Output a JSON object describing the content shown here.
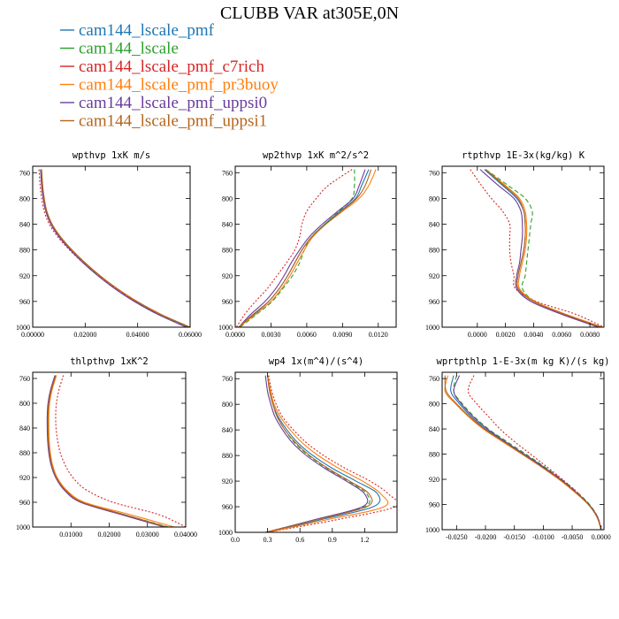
{
  "figure": {
    "title": "CLUBB VAR at305E,0N"
  },
  "series": [
    {
      "name": "cam144_lscale_pmf",
      "color": "#1f77b4",
      "dash": "solid"
    },
    {
      "name": "cam144_lscale",
      "color": "#2ca02c",
      "dash": "dashed"
    },
    {
      "name": "cam144_lscale_pmf_c7rich",
      "color": "#d62728",
      "dash": "dotted"
    },
    {
      "name": "cam144_lscale_pmf_pr3buoy",
      "color": "#ff7f0e",
      "dash": "solid"
    },
    {
      "name": "cam144_lscale_pmf_uppsi0",
      "color": "#6a3d9a",
      "dash": "solid"
    },
    {
      "name": "cam144_lscale_pmf_uppsi1",
      "color": "#b5651d",
      "dash": "solid"
    }
  ],
  "chart_data": [
    {
      "type": "line",
      "title": "wpthvp  1xK m/s",
      "ylim": [
        1000,
        750
      ],
      "yticks": [
        760,
        800,
        840,
        880,
        920,
        960,
        1000
      ],
      "xlim": [
        0,
        0.06
      ],
      "xticks": [
        0,
        0.02,
        0.04,
        0.06
      ],
      "xticklabels": [
        "0.00000",
        "0.02000",
        "0.04000",
        "0.06000"
      ],
      "levels": [
        755,
        780,
        800,
        820,
        840,
        860,
        880,
        900,
        920,
        940,
        960,
        980,
        1000
      ],
      "series_x": [
        [
          0.0032,
          0.0036,
          0.0042,
          0.0052,
          0.0072,
          0.0105,
          0.0148,
          0.0198,
          0.0255,
          0.032,
          0.0395,
          0.0485,
          0.0595
        ],
        [
          0.003,
          0.0034,
          0.004,
          0.005,
          0.007,
          0.0103,
          0.0146,
          0.0196,
          0.0253,
          0.0318,
          0.0393,
          0.0482,
          0.0592
        ],
        [
          0.0024,
          0.0028,
          0.0034,
          0.0044,
          0.0063,
          0.0096,
          0.014,
          0.0192,
          0.025,
          0.0316,
          0.0392,
          0.0484,
          0.0598
        ],
        [
          0.0033,
          0.0037,
          0.0043,
          0.0053,
          0.0073,
          0.0106,
          0.0149,
          0.0199,
          0.0256,
          0.0321,
          0.0397,
          0.0488,
          0.06
        ],
        [
          0.003,
          0.0034,
          0.004,
          0.005,
          0.0069,
          0.0101,
          0.0143,
          0.0192,
          0.0248,
          0.0312,
          0.0387,
          0.0476,
          0.0585
        ],
        [
          0.0034,
          0.0038,
          0.0044,
          0.0054,
          0.0074,
          0.0107,
          0.015,
          0.02,
          0.0257,
          0.0322,
          0.0398,
          0.0489,
          0.06
        ]
      ]
    },
    {
      "type": "line",
      "title": "wp2thvp  1xK m^2/s^2",
      "ylim": [
        1000,
        750
      ],
      "yticks": [
        760,
        800,
        840,
        880,
        920,
        960,
        1000
      ],
      "xlim": [
        0,
        0.0135
      ],
      "xticks": [
        0,
        0.003,
        0.006,
        0.009,
        0.012
      ],
      "xticklabels": [
        "0.0000",
        "0.0030",
        "0.0060",
        "0.0090",
        "0.0120"
      ],
      "levels": [
        755,
        780,
        800,
        820,
        840,
        860,
        880,
        900,
        920,
        940,
        960,
        980,
        1000
      ],
      "series_x": [
        [
          0.0112,
          0.0106,
          0.0101,
          0.0088,
          0.0075,
          0.0064,
          0.0056,
          0.005,
          0.0044,
          0.0037,
          0.0028,
          0.0016,
          0.0003
        ],
        [
          0.01,
          0.01,
          0.0098,
          0.0087,
          0.0075,
          0.0064,
          0.0058,
          0.0054,
          0.0048,
          0.004,
          0.0031,
          0.0018,
          0.0004
        ],
        [
          0.0098,
          0.0078,
          0.0068,
          0.006,
          0.0056,
          0.0054,
          0.005,
          0.0043,
          0.0035,
          0.0027,
          0.0017,
          0.0008,
          0.0001
        ],
        [
          0.0118,
          0.0112,
          0.0104,
          0.009,
          0.0076,
          0.0065,
          0.0058,
          0.0052,
          0.0046,
          0.0039,
          0.003,
          0.0017,
          0.0003
        ],
        [
          0.0109,
          0.0104,
          0.0099,
          0.0086,
          0.0073,
          0.0062,
          0.0054,
          0.0047,
          0.0041,
          0.0034,
          0.0025,
          0.0013,
          0.0003
        ],
        [
          0.0114,
          0.0109,
          0.0102,
          0.0089,
          0.0076,
          0.0064,
          0.0056,
          0.005,
          0.0044,
          0.0037,
          0.0028,
          0.0015,
          0.0003
        ]
      ]
    },
    {
      "type": "line",
      "title": "rtpthvp  1E-3x(kg/kg) K",
      "ylim": [
        1000,
        750
      ],
      "yticks": [
        760,
        800,
        840,
        880,
        920,
        960,
        1000
      ],
      "xlim": [
        -0.0025,
        0.009
      ],
      "xticks": [
        0,
        0.002,
        0.004,
        0.006,
        0.008
      ],
      "xticklabels": [
        "0.0000",
        "0.0020",
        "0.0040",
        "0.0060",
        "0.0080"
      ],
      "levels": [
        755,
        780,
        800,
        820,
        840,
        860,
        880,
        900,
        920,
        940,
        960,
        980,
        1000
      ],
      "series_x": [
        [
          0.0005,
          0.0018,
          0.0028,
          0.0033,
          0.0034,
          0.0034,
          0.0033,
          0.0031,
          0.0029,
          0.0029,
          0.004,
          0.0062,
          0.0088
        ],
        [
          0.0006,
          0.0022,
          0.0034,
          0.0039,
          0.0038,
          0.0037,
          0.0036,
          0.0035,
          0.0034,
          0.0032,
          0.0041,
          0.0062,
          0.0088
        ],
        [
          -0.0005,
          0.0003,
          0.001,
          0.0018,
          0.0023,
          0.0023,
          0.0023,
          0.0024,
          0.0026,
          0.0027,
          0.0042,
          0.007,
          0.009
        ],
        [
          0.0006,
          0.002,
          0.003,
          0.0034,
          0.0035,
          0.0035,
          0.0034,
          0.0032,
          0.003,
          0.003,
          0.0041,
          0.0063,
          0.0089
        ],
        [
          0.0002,
          0.0015,
          0.0026,
          0.0031,
          0.0032,
          0.0032,
          0.0031,
          0.003,
          0.0028,
          0.0028,
          0.0038,
          0.006,
          0.0086
        ],
        [
          0.0006,
          0.0019,
          0.0029,
          0.0033,
          0.0034,
          0.0034,
          0.0033,
          0.0031,
          0.0029,
          0.0029,
          0.004,
          0.0062,
          0.0088
        ]
      ]
    },
    {
      "type": "line",
      "title": "thlpthvp  1xK^2",
      "ylim": [
        1000,
        750
      ],
      "yticks": [
        760,
        800,
        840,
        880,
        920,
        960,
        1000
      ],
      "xlim": [
        0,
        0.04
      ],
      "xticks": [
        0.01,
        0.02,
        0.03,
        0.04
      ],
      "xticklabels": [
        "0.01000",
        "0.02000",
        "0.03000",
        "0.04000"
      ],
      "levels": [
        755,
        780,
        800,
        820,
        840,
        860,
        880,
        900,
        920,
        940,
        960,
        980,
        1000
      ],
      "series_x": [
        [
          0.006,
          0.0048,
          0.0042,
          0.004,
          0.004,
          0.0041,
          0.0044,
          0.005,
          0.0062,
          0.0085,
          0.013,
          0.024,
          0.035
        ],
        [
          0.006,
          0.0048,
          0.0042,
          0.004,
          0.004,
          0.0041,
          0.0044,
          0.005,
          0.0062,
          0.0085,
          0.013,
          0.024,
          0.0355
        ],
        [
          0.008,
          0.0068,
          0.0062,
          0.006,
          0.0061,
          0.0065,
          0.0072,
          0.0085,
          0.0105,
          0.014,
          0.021,
          0.033,
          0.04
        ],
        [
          0.0062,
          0.005,
          0.0044,
          0.0042,
          0.0042,
          0.0043,
          0.0046,
          0.0052,
          0.0064,
          0.0088,
          0.0135,
          0.0255,
          0.037
        ],
        [
          0.0058,
          0.0046,
          0.004,
          0.0038,
          0.0038,
          0.0039,
          0.0042,
          0.0048,
          0.006,
          0.0082,
          0.0125,
          0.0232,
          0.0345
        ],
        [
          0.006,
          0.0048,
          0.0042,
          0.004,
          0.004,
          0.0041,
          0.0044,
          0.005,
          0.0062,
          0.0085,
          0.013,
          0.024,
          0.035
        ]
      ]
    },
    {
      "type": "line",
      "title": "wp4  1x(m^4)/(s^4)",
      "ylim": [
        1000,
        750
      ],
      "yticks": [
        760,
        800,
        840,
        880,
        920,
        960,
        1000
      ],
      "xlim": [
        0,
        1.5
      ],
      "xticks": [
        0,
        0.3,
        0.6,
        0.9,
        1.2
      ],
      "xticklabels": [
        "0.0",
        "0.3",
        "0.6",
        "0.9",
        "1.2"
      ],
      "levels": [
        755,
        780,
        800,
        820,
        840,
        860,
        880,
        900,
        920,
        940,
        960,
        980,
        1000
      ],
      "series_x": [
        [
          0.3,
          0.32,
          0.35,
          0.4,
          0.48,
          0.58,
          0.72,
          0.9,
          1.12,
          1.32,
          1.28,
          0.8,
          0.3
        ],
        [
          0.3,
          0.32,
          0.35,
          0.39,
          0.46,
          0.55,
          0.68,
          0.85,
          1.05,
          1.22,
          1.2,
          0.75,
          0.28
        ],
        [
          0.31,
          0.34,
          0.38,
          0.44,
          0.54,
          0.66,
          0.82,
          1.02,
          1.25,
          1.42,
          1.48,
          0.95,
          0.3
        ],
        [
          0.3,
          0.33,
          0.36,
          0.42,
          0.51,
          0.62,
          0.77,
          0.96,
          1.18,
          1.35,
          1.38,
          0.86,
          0.3
        ],
        [
          0.28,
          0.3,
          0.33,
          0.37,
          0.44,
          0.53,
          0.66,
          0.83,
          1.03,
          1.2,
          1.18,
          0.74,
          0.28
        ],
        [
          0.3,
          0.32,
          0.35,
          0.39,
          0.46,
          0.56,
          0.69,
          0.86,
          1.06,
          1.24,
          1.22,
          0.76,
          0.28
        ]
      ]
    },
    {
      "type": "line",
      "title": "wprtpthlp  1-E-3x(m kg K)/(s kg)",
      "ylim": [
        1000,
        750
      ],
      "yticks": [
        760,
        800,
        840,
        880,
        920,
        960,
        1000
      ],
      "xlim": [
        -0.0275,
        0.0005
      ],
      "xticks": [
        -0.025,
        -0.02,
        -0.015,
        -0.01,
        -0.005,
        0
      ],
      "xticklabels": [
        "-0.0250",
        "-0.0200",
        "-0.0150",
        "-0.0100",
        "-0.0050",
        "0.0000"
      ],
      "levels": [
        755,
        780,
        800,
        820,
        840,
        860,
        880,
        900,
        920,
        940,
        960,
        980,
        1000
      ],
      "series_x": [
        [
          -0.0255,
          -0.026,
          -0.0245,
          -0.0225,
          -0.02,
          -0.0168,
          -0.0135,
          -0.0102,
          -0.0072,
          -0.0045,
          -0.0022,
          -0.0007,
          0.0
        ],
        [
          -0.025,
          -0.0255,
          -0.024,
          -0.022,
          -0.0195,
          -0.0163,
          -0.013,
          -0.0098,
          -0.0068,
          -0.0042,
          -0.002,
          -0.0006,
          0.0
        ],
        [
          -0.022,
          -0.023,
          -0.0215,
          -0.0195,
          -0.0175,
          -0.015,
          -0.0122,
          -0.0094,
          -0.0067,
          -0.0042,
          -0.0021,
          -0.0006,
          0.0
        ],
        [
          -0.0265,
          -0.027,
          -0.0252,
          -0.023,
          -0.0204,
          -0.0171,
          -0.0137,
          -0.0104,
          -0.0073,
          -0.0046,
          -0.0022,
          -0.0007,
          0.0
        ],
        [
          -0.0245,
          -0.0255,
          -0.0242,
          -0.0222,
          -0.0197,
          -0.0166,
          -0.0133,
          -0.01,
          -0.007,
          -0.0044,
          -0.0021,
          -0.0006,
          0.0
        ],
        [
          -0.027,
          -0.0268,
          -0.025,
          -0.0228,
          -0.0202,
          -0.0169,
          -0.0136,
          -0.0103,
          -0.0072,
          -0.0045,
          -0.0022,
          -0.0007,
          0.0
        ]
      ]
    }
  ]
}
